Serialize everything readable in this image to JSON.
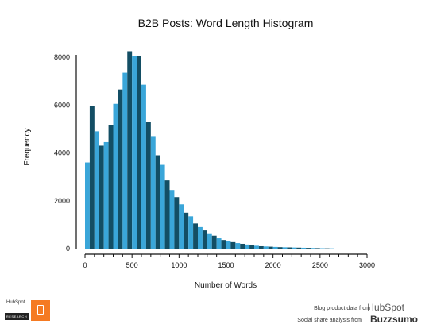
{
  "chart_data": {
    "type": "bar",
    "title": "B2B Posts: Word Length Histogram",
    "xlabel": "Number of Words",
    "ylabel": "Frequency",
    "xlim": [
      0,
      3000
    ],
    "ylim": [
      0,
      8000
    ],
    "x_ticks": [
      0,
      500,
      1000,
      1500,
      2000,
      2500,
      3000
    ],
    "y_ticks": [
      0,
      2000,
      4000,
      6000,
      8000
    ],
    "bin_width": 50,
    "bin_start": 0,
    "values": [
      3600,
      5950,
      4900,
      4300,
      4450,
      5150,
      6050,
      6650,
      7350,
      8250,
      8050,
      8050,
      6850,
      5300,
      4700,
      3900,
      3500,
      2850,
      2450,
      2150,
      1850,
      1500,
      1350,
      1050,
      900,
      760,
      640,
      540,
      430,
      360,
      310,
      270,
      230,
      200,
      170,
      140,
      120,
      100,
      90,
      80,
      70,
      60,
      55,
      50,
      45,
      40,
      35,
      30,
      25,
      20,
      15,
      12,
      10
    ],
    "colors": {
      "light": "#3aa6d9",
      "dark": "#134e64"
    },
    "grid": false,
    "legend": "none"
  },
  "footer": {
    "credit_blog": "Blog product data from",
    "brand_hubspot": "HubSpot",
    "credit_social": "Social share analysis from",
    "brand_buzzsumo": "Buzzsumo"
  },
  "logo": {
    "hubspot_text": "HubSpot",
    "research_text": "RESEARCH",
    "icon": "clipboard-icon"
  }
}
